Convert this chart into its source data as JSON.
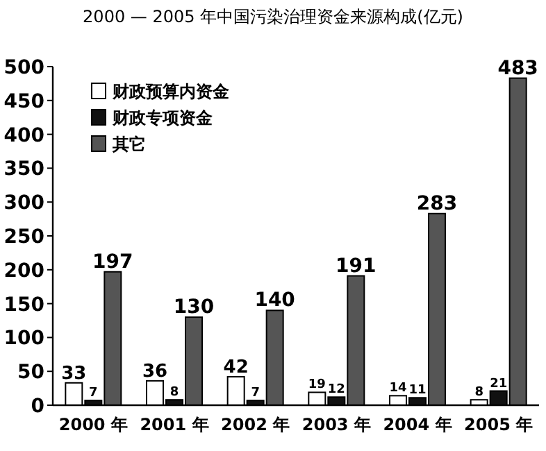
{
  "chart_data": {
    "type": "bar",
    "title": "2000 — 2005 年中国污染治理资金来源构成(亿元)",
    "categories": [
      "2000 年",
      "2001 年",
      "2002 年",
      "2003 年",
      "2004 年",
      "2005 年"
    ],
    "series": [
      {
        "name": "财政预算内资金",
        "color": "#ffffff",
        "values": [
          33,
          36,
          42,
          19,
          14,
          8
        ]
      },
      {
        "name": "财政专项资金",
        "color": "#111111",
        "values": [
          7,
          8,
          7,
          12,
          11,
          21
        ]
      },
      {
        "name": "其它",
        "color": "#555555",
        "values": [
          197,
          130,
          140,
          191,
          283,
          483
        ]
      }
    ],
    "ylim": [
      0,
      500
    ],
    "yticks": [
      0,
      50,
      100,
      150,
      200,
      250,
      300,
      350,
      400,
      450,
      500
    ],
    "data_labels": true,
    "legend": "top left",
    "grid": false
  }
}
